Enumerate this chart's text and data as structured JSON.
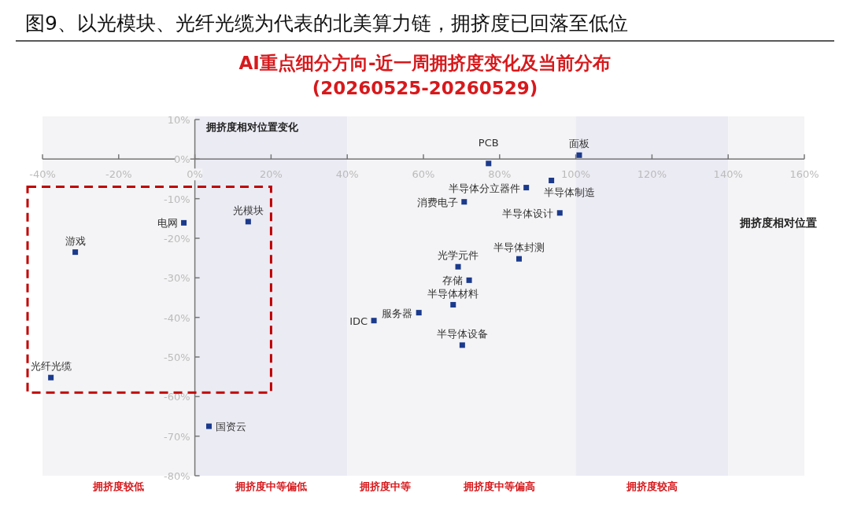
{
  "chart_data": {
    "type": "scatter",
    "title": "图9、以光模块、光纤光缆为代表的北美算力链，拥挤度已回落至低位",
    "subtitle": "AI重点细分方向-近一周拥挤度变化及当前分布\n(20260525-20260529)",
    "xlabel": "拥挤度相对位置",
    "ylabel": "拥挤度相对位置变化",
    "marker": "square",
    "series": [
      {
        "color": "#1b3a8c",
        "x": [
          100.9,
          77.1,
          93.6,
          87.0,
          70.7,
          95.8,
          85.1,
          69.1,
          72.0,
          67.8,
          58.8,
          47.0,
          70.2,
          -2.9,
          14.0,
          -31.4,
          -37.8,
          3.7
        ],
        "values": [
          1.0,
          -1.1,
          -5.4,
          -7.2,
          -10.8,
          -13.6,
          -25.2,
          -27.2,
          -30.6,
          -36.8,
          -38.8,
          -40.8,
          -47.0,
          -16.1,
          -15.8,
          -23.5,
          -55.2,
          -67.5
        ]
      }
    ],
    "annotations": [
      {
        "text": "面板",
        "x": 100.9,
        "y": 1.0
      },
      {
        "text": "PCB",
        "x": 77.1,
        "y": -1.1
      },
      {
        "text": "半导体制造",
        "x": 93.6,
        "y": -5.4
      },
      {
        "text": "半导体分立器件",
        "x": 87.0,
        "y": -7.2
      },
      {
        "text": "消费电子",
        "x": 70.7,
        "y": -10.8
      },
      {
        "text": "半导体设计",
        "x": 95.8,
        "y": -13.6
      },
      {
        "text": "半导体封测",
        "x": 85.1,
        "y": -25.2
      },
      {
        "text": "光学元件",
        "x": 69.1,
        "y": -27.2
      },
      {
        "text": "存储",
        "x": 72.0,
        "y": -30.6
      },
      {
        "text": "半导体材料",
        "x": 67.8,
        "y": -36.8
      },
      {
        "text": "服务器",
        "x": 58.8,
        "y": -38.8
      },
      {
        "text": "IDC",
        "x": 47.0,
        "y": -40.8
      },
      {
        "text": "半导体设备",
        "x": 70.2,
        "y": -47.0
      },
      {
        "text": "电网",
        "x": -2.9,
        "y": -16.1
      },
      {
        "text": "光模块",
        "x": 14.0,
        "y": -15.8
      },
      {
        "text": "游戏",
        "x": -31.4,
        "y": -23.5
      },
      {
        "text": "光纤光缆",
        "x": -37.8,
        "y": -55.2
      },
      {
        "text": "国资云",
        "x": 3.7,
        "y": -67.5
      }
    ],
    "xlim": [
      -40,
      160
    ],
    "ylim": [
      -80,
      10
    ],
    "xticks": [
      {
        "value": -40,
        "label": "-40%"
      },
      {
        "value": -20,
        "label": "-20%"
      },
      {
        "value": 0,
        "label": "0%"
      },
      {
        "value": 20,
        "label": "20%"
      },
      {
        "value": 40,
        "label": "40%"
      },
      {
        "value": 60,
        "label": "60%"
      },
      {
        "value": 80,
        "label": "80%"
      },
      {
        "value": 100,
        "label": "100%"
      },
      {
        "value": 120,
        "label": "120%"
      },
      {
        "value": 140,
        "label": "140%"
      },
      {
        "value": 160,
        "label": "160%"
      }
    ],
    "yticks": [
      {
        "value": 10,
        "label": "10%"
      },
      {
        "value": 0,
        "label": "0%"
      },
      {
        "value": -10,
        "label": "-10%"
      },
      {
        "value": -20,
        "label": "-20%"
      },
      {
        "value": -30,
        "label": "-30%"
      },
      {
        "value": -40,
        "label": "-40%"
      },
      {
        "value": -50,
        "label": "-50%"
      },
      {
        "value": -60,
        "label": "-60%"
      },
      {
        "value": -70,
        "label": "-70%"
      },
      {
        "value": -80,
        "label": "-80%"
      }
    ],
    "bands": [
      {
        "axis": "x",
        "from": -40,
        "to": 0,
        "label": "拥挤度较低",
        "color": "#f4f4f6"
      },
      {
        "axis": "x",
        "from": 0,
        "to": 40,
        "label": "拥挤度中等偏低",
        "color": "#ebebf4"
      },
      {
        "axis": "x",
        "from": 40,
        "to": 60,
        "label": "拥挤度中等",
        "color": "#f4f4f6"
      },
      {
        "axis": "x",
        "from": 60,
        "to": 100,
        "label": "拥挤度中等偏高",
        "color": "#f4f4f6"
      },
      {
        "axis": "x",
        "from": 100,
        "to": 140,
        "label": "拥挤度较高",
        "color": "#ebebf4"
      },
      {
        "axis": "x",
        "from": 140,
        "to": 160,
        "color": "#f4f4f6"
      }
    ],
    "grid": false
  }
}
